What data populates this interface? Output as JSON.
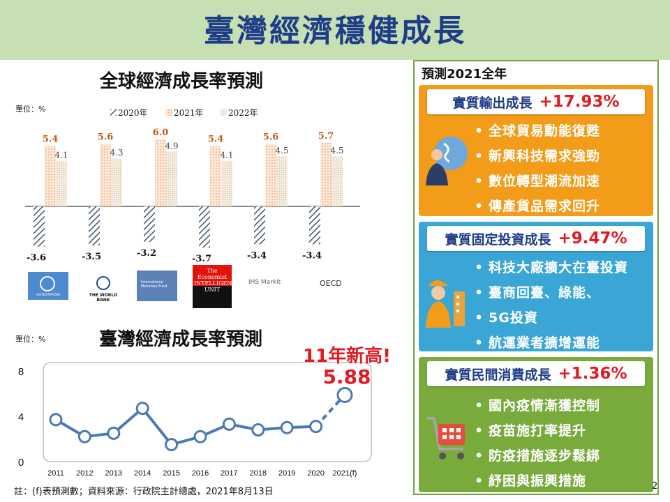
{
  "title": "臺灣經濟穩健成長",
  "global": {
    "title": "全球經濟成長率預測",
    "unit": "單位：%",
    "orgs": [
      "UNITED NATIONS",
      "THE WORLD BANK",
      "International Monetary Fund",
      "The Economist INTELLIGENCE UNIT",
      "IHS Markit",
      "OECD"
    ]
  },
  "taiwan": {
    "title": "臺灣經濟成長率預測",
    "unit": "單位：%",
    "highlight_label": "11年新高!",
    "highlight_value": "5.88"
  },
  "forecast": {
    "title": "預測2021全年",
    "cards": [
      {
        "label": "實質輸出成長",
        "value": "+17.93%",
        "color": "#f39c1a",
        "icon": "globe-businessman-icon",
        "bullets": [
          "全球貿易動能復甦",
          "新興科技需求強勁",
          "數位轉型潮流加速",
          "傳產貨品需求回升"
        ]
      },
      {
        "label": "實質固定投資成長",
        "value": "+9.47%",
        "color": "#3aa6d6",
        "icon": "construction-worker-icon",
        "bullets": [
          "科技大廠擴大在臺投資",
          "臺商回臺、綠能、",
          "5G投資",
          "航運業者擴增運能"
        ]
      },
      {
        "label": "實質民間消費成長",
        "value": "+1.36%",
        "color": "#79ab3c",
        "icon": "shopping-cart-icon",
        "bullets": [
          "國內疫情漸獲控制",
          "疫苗施打率提升",
          "防疫措施逐步鬆綁",
          "紓困與振興措施"
        ]
      }
    ]
  },
  "note": "註：(f)表預測數；資料來源：行政院主計總處，2021年8月13日",
  "slide_number": "2",
  "chart_data": [
    {
      "type": "bar",
      "title": "全球經濟成長率預測",
      "unit": "單位：%",
      "legend": [
        "2020年",
        "2021年",
        "2022年"
      ],
      "series": [
        {
          "name": "2020年",
          "values": [
            -3.6,
            -3.5,
            -3.2,
            -3.7,
            -3.4,
            -3.4
          ]
        },
        {
          "name": "2021年",
          "values": [
            5.4,
            5.6,
            6.0,
            5.4,
            5.6,
            5.7
          ]
        },
        {
          "name": "2022年",
          "values": [
            4.1,
            4.3,
            4.9,
            4.1,
            4.5,
            4.5
          ]
        }
      ],
      "colors": {
        "2020年": "#44546a",
        "2021年": "#f4b183",
        "2022年": "#d9c3a5"
      }
    },
    {
      "type": "line",
      "title": "臺灣經濟成長率預測",
      "unit": "單位：%",
      "x": [
        "2011",
        "2012",
        "2013",
        "2014",
        "2015",
        "2016",
        "2017",
        "2018",
        "2019",
        "2020",
        "2021(f)"
      ],
      "values": [
        3.7,
        2.2,
        2.5,
        4.7,
        1.5,
        2.2,
        3.3,
        2.8,
        3.0,
        3.1,
        5.88
      ],
      "yticks": [
        "0",
        "4",
        "8"
      ],
      "ylim": [
        0,
        8
      ],
      "color": "#4a7ab5"
    }
  ]
}
